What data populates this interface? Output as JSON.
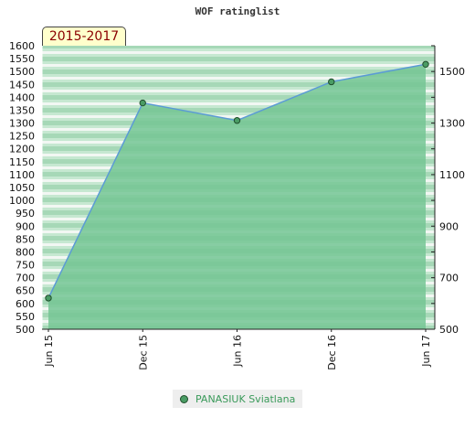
{
  "title": "WOF ratinglist",
  "period_label": "2015-2017",
  "legend": {
    "label": "PANASIUK Sviatlana"
  },
  "colors": {
    "fill": "#74c594",
    "line": "#5b9bd5",
    "marker": "#4a9c64",
    "legend_text": "#3a9a5a",
    "period_text": "#8b0000"
  },
  "chart_data": {
    "type": "area",
    "title": "WOF ratinglist",
    "x": [
      "Jun 15",
      "Dec 15",
      "Jun 16",
      "Dec 16",
      "Jun 17"
    ],
    "series": [
      {
        "name": "PANASIUK Sviatlana",
        "values": [
          621,
          1378,
          1310,
          1460,
          1528
        ]
      }
    ],
    "ylim_left": [
      500,
      1600
    ],
    "yticks_left": [
      500,
      550,
      600,
      650,
      700,
      750,
      800,
      850,
      900,
      950,
      1000,
      1050,
      1100,
      1150,
      1200,
      1250,
      1300,
      1350,
      1400,
      1450,
      1500,
      1550,
      1600
    ],
    "yticks_right": [
      500,
      700,
      900,
      1100,
      1300,
      1500
    ],
    "grid": false,
    "legend_position": "bottom"
  }
}
